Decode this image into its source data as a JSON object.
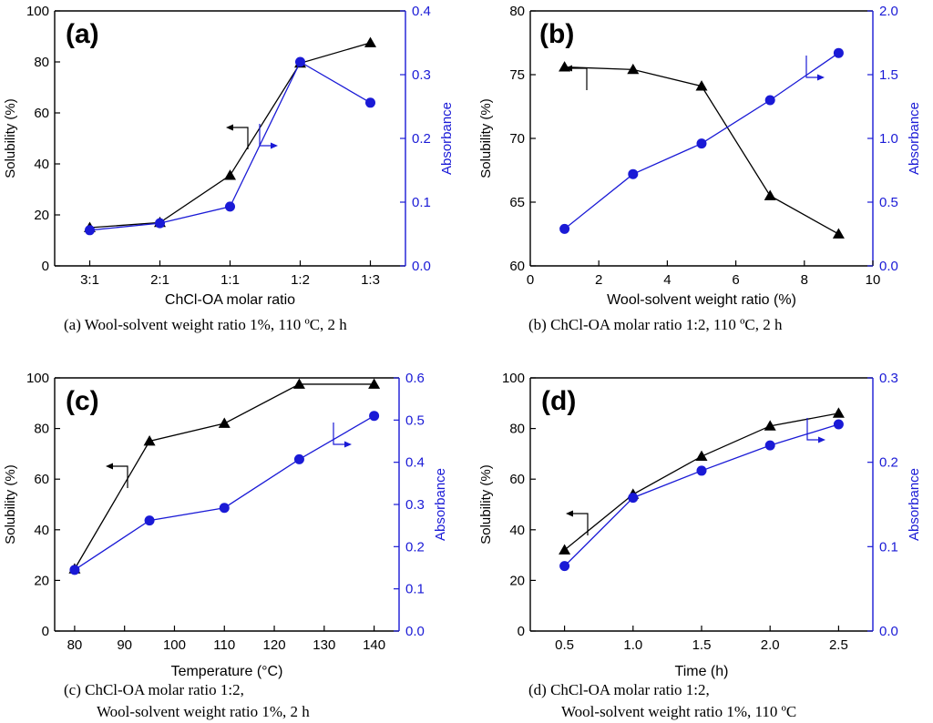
{
  "colors": {
    "solubility": "#000000",
    "absorbance": "#1a1ad6",
    "right_axis": "#1a1ad6"
  },
  "chart_data": [
    {
      "panel": "(a)",
      "type": "line",
      "x_type": "category",
      "categories": [
        "3:1",
        "2:1",
        "1:1",
        "1:2",
        "1:3"
      ],
      "xlabel": "ChCl-OA molar ratio",
      "ylabel_left": "Solubility (%)",
      "ylabel_right": "Absorbance",
      "ylim_left": [
        0,
        100
      ],
      "yticks_left": [
        0,
        20,
        40,
        60,
        80,
        100
      ],
      "ytick_labels_left": [
        "0",
        "20",
        "40",
        "60",
        "80",
        "100"
      ],
      "ylim_right": [
        0,
        0.4
      ],
      "yticks_right": [
        0,
        0.1,
        0.2,
        0.3,
        0.4
      ],
      "ytick_labels_right": [
        "0.0",
        "0.1",
        "0.2",
        "0.3",
        "0.4"
      ],
      "series": [
        {
          "name": "Solubility",
          "axis": "left",
          "marker": "triangle",
          "values": [
            15,
            17,
            35.5,
            79.5,
            87.5
          ]
        },
        {
          "name": "Absorbance",
          "axis": "right",
          "marker": "circle",
          "values": [
            0.056,
            0.067,
            0.093,
            0.32,
            0.256
          ]
        }
      ],
      "caption_lines": [
        "(a) Wool-solvent weight ratio 1%, 110 ºC, 2 h"
      ]
    },
    {
      "panel": "(b)",
      "type": "line",
      "x_type": "numeric",
      "x": [
        1,
        3,
        5,
        7,
        9
      ],
      "xlim": [
        0,
        10
      ],
      "xticks": [
        0,
        2,
        4,
        6,
        8,
        10
      ],
      "xtick_labels": [
        "0",
        "2",
        "4",
        "6",
        "8",
        "10"
      ],
      "xlabel": "Wool-solvent weight ratio (%)",
      "ylabel_left": "Solubility (%)",
      "ylabel_right": "Absorbance",
      "ylim_left": [
        60,
        80
      ],
      "yticks_left": [
        60,
        65,
        70,
        75,
        80
      ],
      "ytick_labels_left": [
        "60",
        "65",
        "70",
        "75",
        "80"
      ],
      "ylim_right": [
        0,
        2
      ],
      "yticks_right": [
        0,
        0.5,
        1,
        1.5,
        2
      ],
      "ytick_labels_right": [
        "0.0",
        "0.5",
        "1.0",
        "1.5",
        "2.0"
      ],
      "series": [
        {
          "name": "Solubility",
          "axis": "left",
          "marker": "triangle",
          "values": [
            75.6,
            75.4,
            74.1,
            65.5,
            62.5
          ]
        },
        {
          "name": "Absorbance",
          "axis": "right",
          "marker": "circle",
          "values": [
            0.29,
            0.72,
            0.96,
            1.3,
            1.67
          ]
        }
      ],
      "caption_lines": [
        "(b) ChCl-OA molar ratio 1:2, 110 ºC, 2 h"
      ]
    },
    {
      "panel": "(c)",
      "type": "line",
      "x_type": "numeric",
      "x": [
        80,
        95,
        110,
        125,
        140
      ],
      "xlim": [
        76,
        145
      ],
      "xticks": [
        80,
        90,
        100,
        110,
        120,
        130,
        140
      ],
      "xtick_labels": [
        "80",
        "90",
        "100",
        "110",
        "120",
        "130",
        "140"
      ],
      "xlabel": "Temperature (°C)",
      "ylabel_left": "Solubility (%)",
      "ylabel_right": "Absorbance",
      "ylim_left": [
        0,
        100
      ],
      "yticks_left": [
        0,
        20,
        40,
        60,
        80,
        100
      ],
      "ytick_labels_left": [
        "0",
        "20",
        "40",
        "60",
        "80",
        "100"
      ],
      "ylim_right": [
        0,
        0.6
      ],
      "yticks_right": [
        0,
        0.1,
        0.2,
        0.3,
        0.4,
        0.5,
        0.6
      ],
      "ytick_labels_right": [
        "0.0",
        "0.1",
        "0.2",
        "0.3",
        "0.4",
        "0.5",
        "0.6"
      ],
      "series": [
        {
          "name": "Solubility",
          "axis": "left",
          "marker": "triangle",
          "values": [
            24.5,
            75,
            82,
            97.5,
            97.5
          ]
        },
        {
          "name": "Absorbance",
          "axis": "right",
          "marker": "circle",
          "values": [
            0.145,
            0.262,
            0.292,
            0.407,
            0.51
          ]
        }
      ],
      "caption_lines": [
        "(c) ChCl-OA molar ratio 1:2,",
        "Wool-solvent weight ratio 1%, 2 h"
      ]
    },
    {
      "panel": "(d)",
      "type": "line",
      "x_type": "numeric",
      "x": [
        0.5,
        1.0,
        1.5,
        2.0,
        2.5
      ],
      "xlim": [
        0.25,
        2.75
      ],
      "xticks": [
        0.5,
        1.0,
        1.5,
        2.0,
        2.5
      ],
      "xtick_labels": [
        "0.5",
        "1.0",
        "1.5",
        "2.0",
        "2.5"
      ],
      "xlabel": "Time (h)",
      "ylabel_left": "Solubility (%)",
      "ylabel_right": "Absorbance",
      "ylim_left": [
        0,
        100
      ],
      "yticks_left": [
        0,
        20,
        40,
        60,
        80,
        100
      ],
      "ytick_labels_left": [
        "0",
        "20",
        "40",
        "60",
        "80",
        "100"
      ],
      "ylim_right": [
        0,
        0.3
      ],
      "yticks_right": [
        0,
        0.1,
        0.2,
        0.3
      ],
      "ytick_labels_right": [
        "0.0",
        "0.1",
        "0.2",
        "0.3"
      ],
      "series": [
        {
          "name": "Solubility",
          "axis": "left",
          "marker": "triangle",
          "values": [
            32,
            54,
            69,
            81,
            86
          ]
        },
        {
          "name": "Absorbance",
          "axis": "right",
          "marker": "circle",
          "values": [
            0.077,
            0.158,
            0.19,
            0.22,
            0.245
          ]
        }
      ],
      "caption_lines": [
        "(d) ChCl-OA molar ratio 1:2,",
        "Wool-solvent weight ratio 1%, 110 ºC"
      ]
    }
  ]
}
